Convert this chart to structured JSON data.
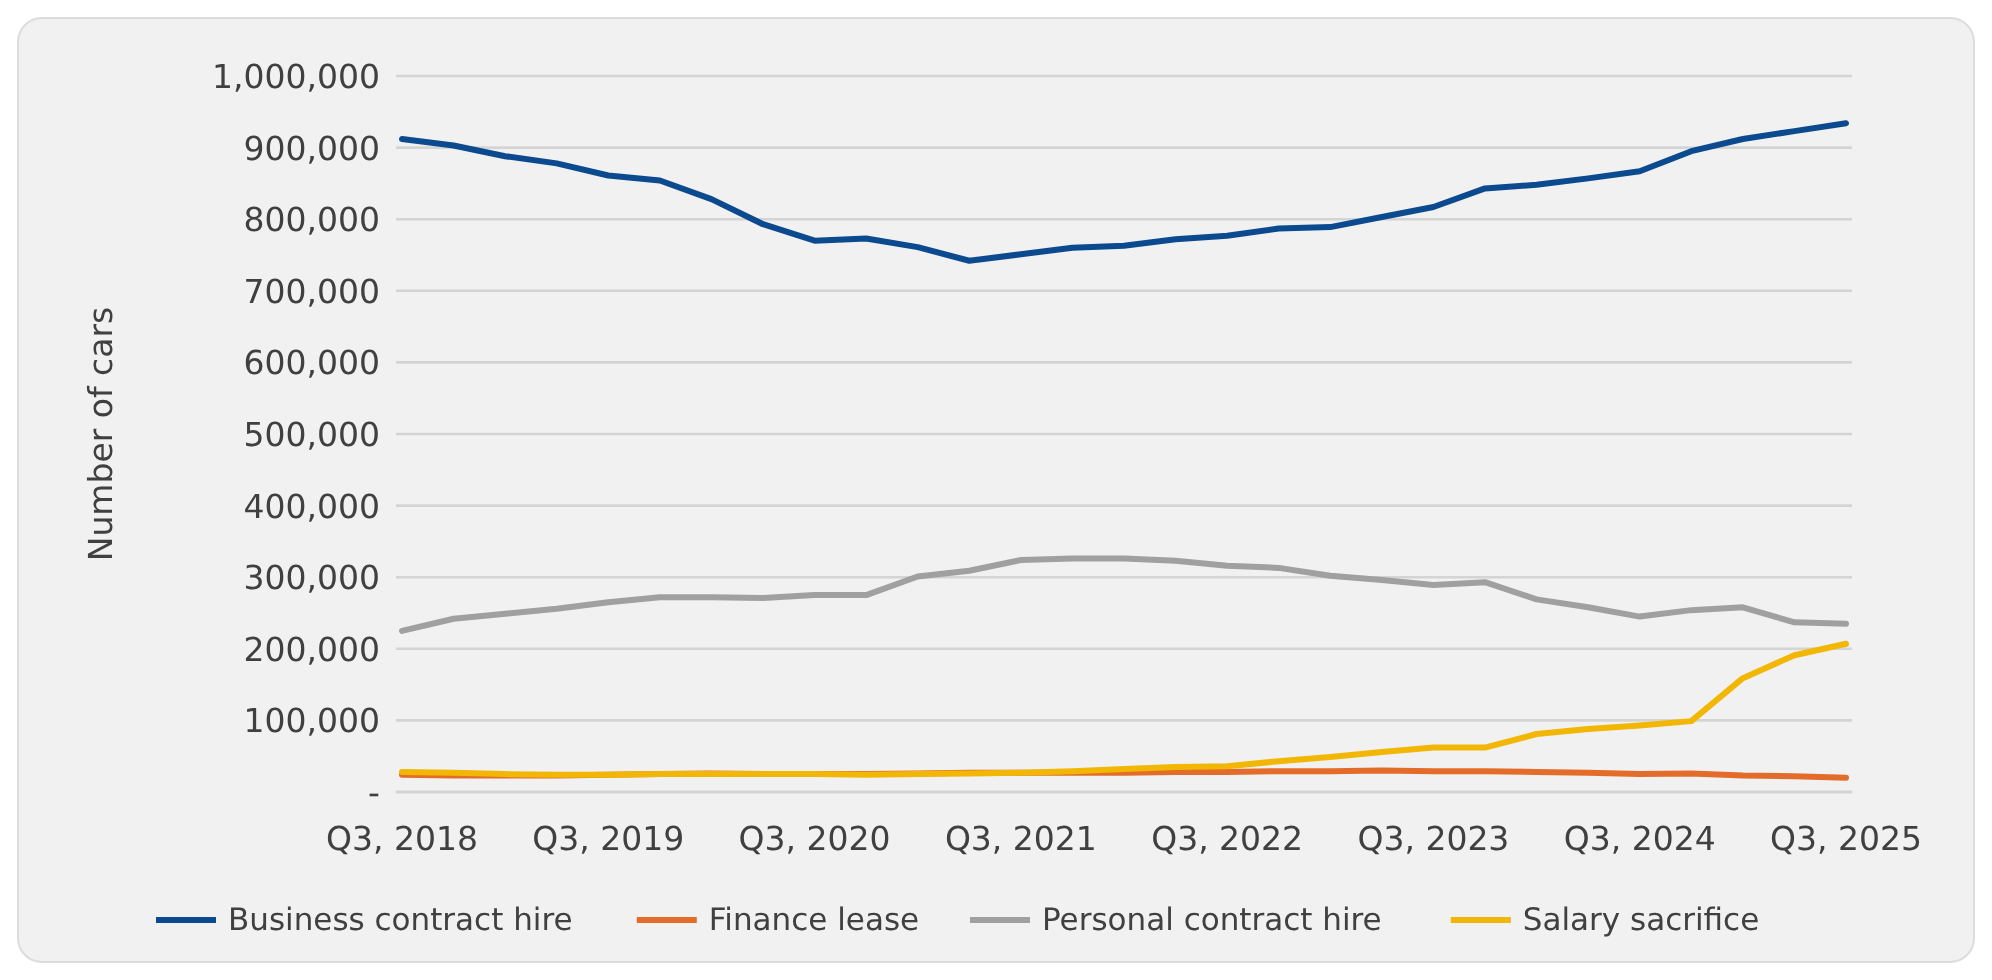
{
  "chart_data": {
    "type": "line",
    "ylabel": "Number of cars",
    "categories": [
      "Q3, 2018",
      null,
      null,
      null,
      "Q3, 2019",
      null,
      null,
      null,
      "Q3, 2020",
      null,
      null,
      null,
      "Q3, 2021",
      null,
      null,
      null,
      "Q3, 2022",
      null,
      null,
      null,
      "Q3, 2023",
      null,
      null,
      null,
      "Q3, 2024",
      null,
      null,
      null,
      "Q3, 2025"
    ],
    "series": [
      {
        "name": "Business contract hire",
        "color": "#0b4a8f",
        "values": [
          912000,
          903000,
          888000,
          878000,
          861000,
          854000,
          828000,
          793000,
          770000,
          773000,
          761000,
          742000,
          751000,
          760000,
          763000,
          772000,
          777000,
          787000,
          789000,
          803000,
          817000,
          843000,
          848000,
          857000,
          867000,
          895000,
          912000,
          923000,
          934000
        ]
      },
      {
        "name": "Finance lease",
        "color": "#e46c2a",
        "values": [
          24000,
          23000,
          23000,
          23000,
          24000,
          25000,
          26000,
          25000,
          25000,
          25000,
          26000,
          27000,
          27000,
          27000,
          27000,
          28000,
          28000,
          29000,
          29000,
          30000,
          29000,
          29000,
          28000,
          27000,
          25000,
          26000,
          23000,
          22000,
          20000
        ]
      },
      {
        "name": "Personal contract hire",
        "color": "#a0a0a0",
        "values": [
          225000,
          242000,
          249000,
          256000,
          265000,
          272000,
          272000,
          271000,
          275000,
          275000,
          301000,
          309000,
          324000,
          326000,
          326000,
          323000,
          316000,
          313000,
          302000,
          296000,
          289000,
          293000,
          269000,
          258000,
          245000,
          254000,
          258000,
          237000,
          235000
        ]
      },
      {
        "name": "Salary sacrifice",
        "color": "#f2b705",
        "values": [
          28000,
          27000,
          25000,
          24000,
          24000,
          25000,
          25000,
          25000,
          25000,
          24000,
          25000,
          26000,
          27000,
          29000,
          32000,
          35000,
          36000,
          43000,
          49000,
          56000,
          62000,
          62000,
          81000,
          88000,
          93000,
          99000,
          159000,
          191000,
          207000
        ]
      }
    ],
    "ylim": [
      0,
      1000000
    ],
    "yticks": [
      {
        "value": 0,
        "label": "-"
      },
      {
        "value": 100000,
        "label": "100,000"
      },
      {
        "value": 200000,
        "label": "200,000"
      },
      {
        "value": 300000,
        "label": "300,000"
      },
      {
        "value": 400000,
        "label": "400,000"
      },
      {
        "value": 500000,
        "label": "500,000"
      },
      {
        "value": 600000,
        "label": "600,000"
      },
      {
        "value": 700000,
        "label": "700,000"
      },
      {
        "value": 800000,
        "label": "800,000"
      },
      {
        "value": 900000,
        "label": "900,000"
      },
      {
        "value": 1000000,
        "label": "1,000,000"
      }
    ],
    "grid": "y",
    "legend": "bottom",
    "marker": "none",
    "line_style": "solid"
  }
}
